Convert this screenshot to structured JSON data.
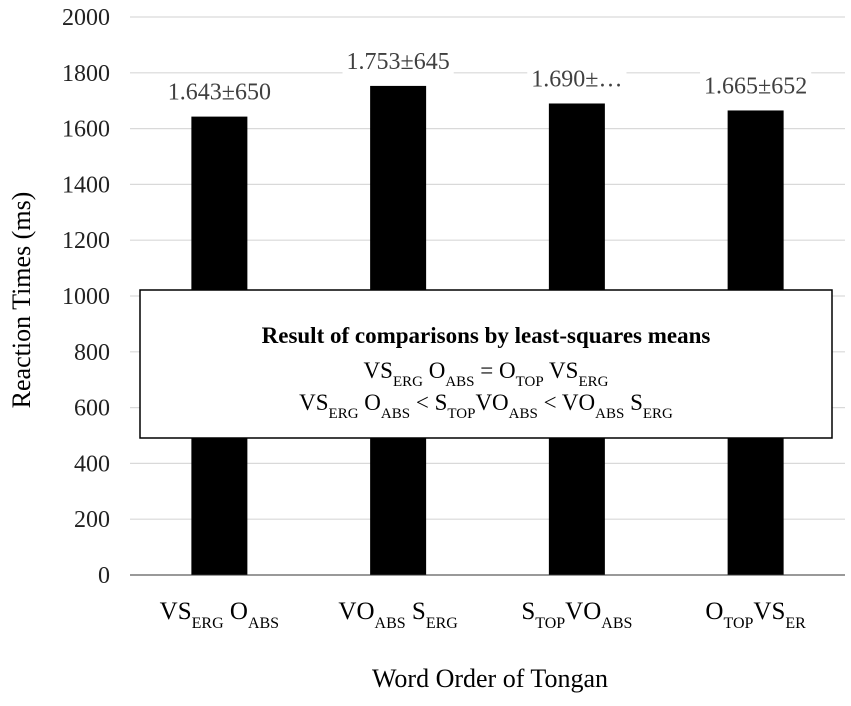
{
  "chart_data": {
    "type": "bar",
    "categories": [
      {
        "parts": [
          {
            "t": "VS"
          },
          {
            "t": "ERG",
            "sub": true
          },
          {
            "t": " O"
          },
          {
            "t": "ABS",
            "sub": true
          }
        ]
      },
      {
        "parts": [
          {
            "t": "VO"
          },
          {
            "t": "ABS",
            "sub": true
          },
          {
            "t": " S"
          },
          {
            "t": "ERG",
            "sub": true
          }
        ]
      },
      {
        "parts": [
          {
            "t": "S"
          },
          {
            "t": "TOP",
            "sub": true
          },
          {
            "t": "VO"
          },
          {
            "t": "ABS",
            "sub": true
          }
        ]
      },
      {
        "parts": [
          {
            "t": "O"
          },
          {
            "t": "TOP",
            "sub": true
          },
          {
            "t": "VS"
          },
          {
            "t": "ER",
            "sub": true
          }
        ]
      }
    ],
    "values": [
      1643,
      1753,
      1690,
      1665
    ],
    "data_labels": [
      "1.643±650",
      "1.753±645",
      "1.690±…",
      "1.665±652"
    ],
    "ylim": [
      0,
      2000
    ],
    "yticks": [
      0,
      200,
      400,
      600,
      800,
      1000,
      1200,
      1400,
      1600,
      1800,
      2000
    ],
    "xlabel": "Word Order of Tongan",
    "ylabel": "Reaction Times (ms)",
    "grid": true,
    "bar_color": "#000000",
    "grid_color": "#d9d9d9"
  },
  "annotation": {
    "title": "Result of comparisons by least-squares means",
    "lines": [
      {
        "parts": [
          {
            "t": "VS"
          },
          {
            "t": "ERG",
            "sub": true
          },
          {
            "t": " O"
          },
          {
            "t": "ABS",
            "sub": true
          },
          {
            "t": " = O"
          },
          {
            "t": "TOP",
            "sub": true
          },
          {
            "t": " VS"
          },
          {
            "t": "ERG",
            "sub": true
          }
        ]
      },
      {
        "parts": [
          {
            "t": "VS"
          },
          {
            "t": "ERG",
            "sub": true
          },
          {
            "t": " O"
          },
          {
            "t": "ABS",
            "sub": true
          },
          {
            "t": " < S"
          },
          {
            "t": "TOP",
            "sub": true
          },
          {
            "t": "VO"
          },
          {
            "t": "ABS",
            "sub": true
          },
          {
            "t": " < VO"
          },
          {
            "t": "ABS",
            "sub": true
          },
          {
            "t": " S"
          },
          {
            "t": "ERG",
            "sub": true
          }
        ]
      }
    ]
  }
}
